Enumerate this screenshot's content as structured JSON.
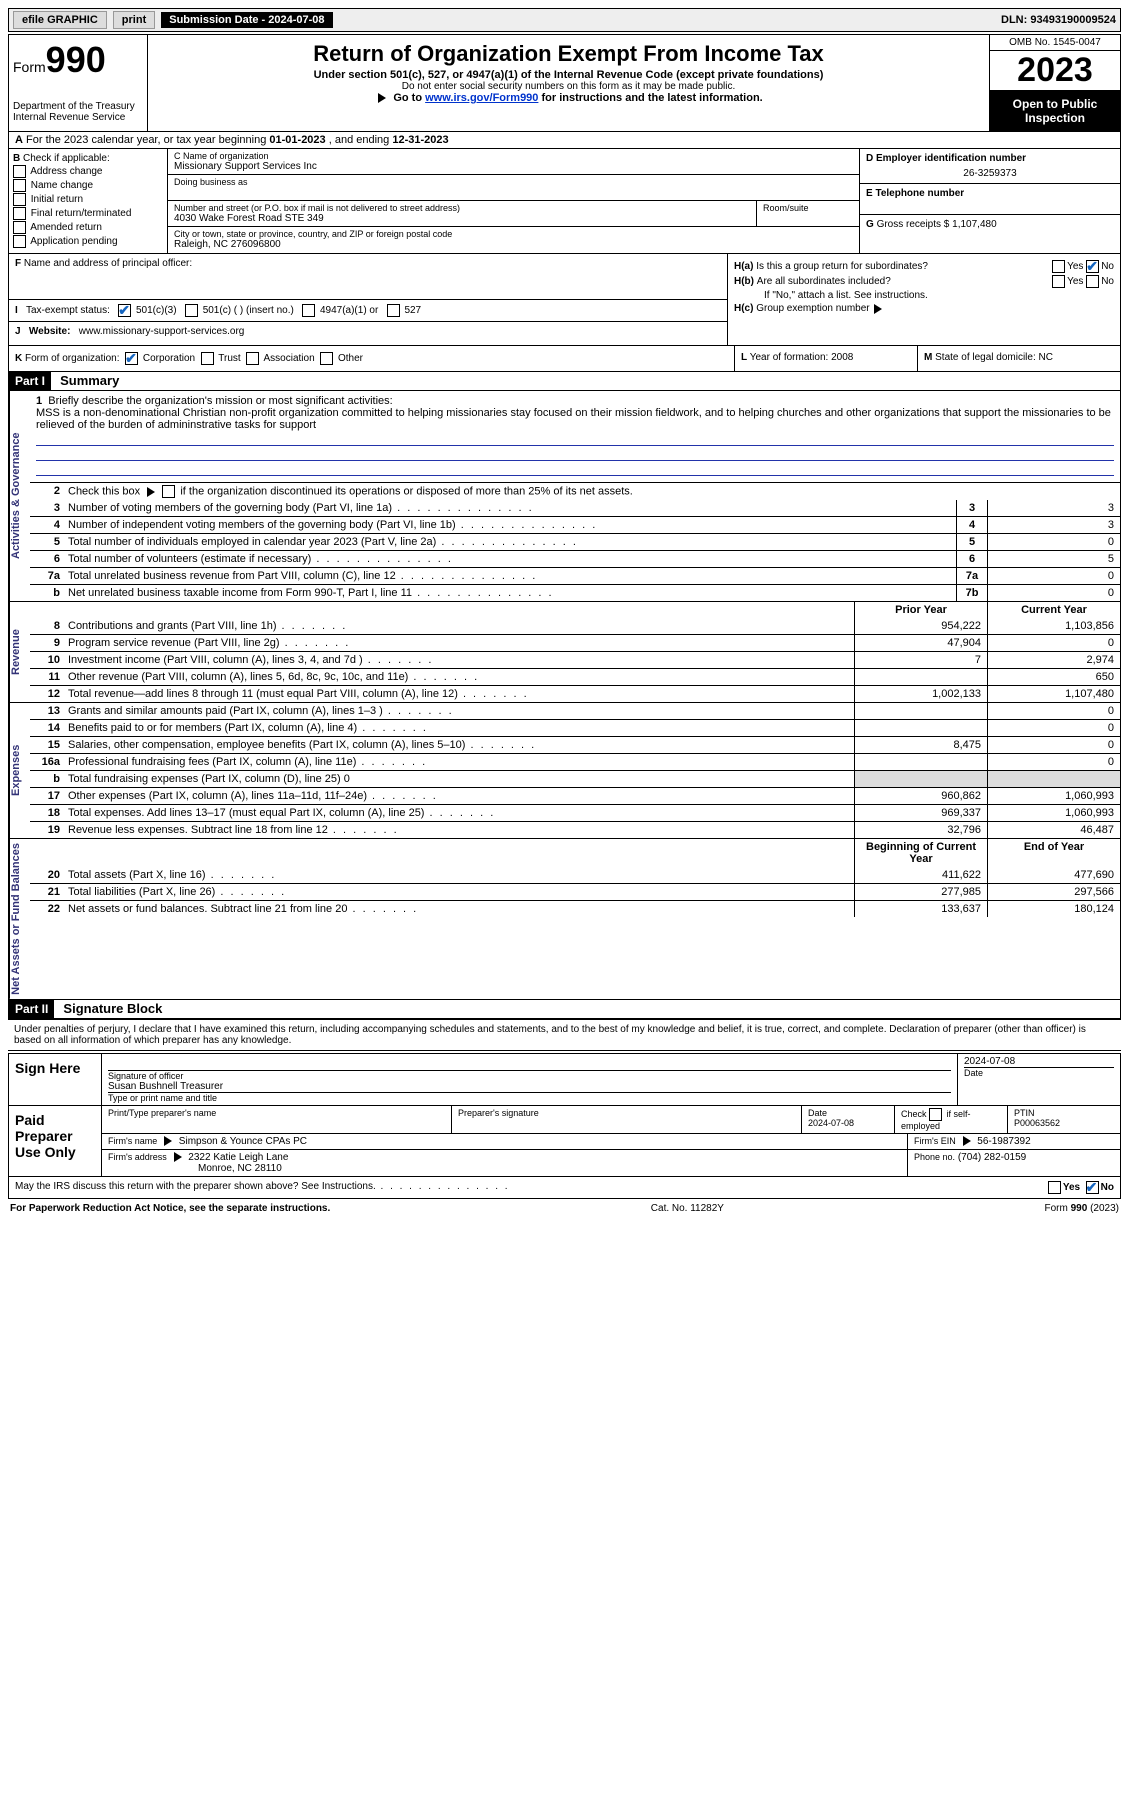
{
  "topbar": {
    "efile": "efile GRAPHIC",
    "print": "print",
    "submission": "Submission Date - 2024-07-08",
    "dln": "DLN: 93493190009524"
  },
  "header": {
    "form_label": "Form",
    "form_number": "990",
    "dept": "Department of the Treasury",
    "irs": "Internal Revenue Service",
    "title": "Return of Organization Exempt From Income Tax",
    "sub1": "Under section 501(c), 527, or 4947(a)(1) of the Internal Revenue Code (except private foundations)",
    "sub2": "Do not enter social security numbers on this form as it may be made public.",
    "sub3_pre": "Go to ",
    "sub3_link": "www.irs.gov/Form990",
    "sub3_post": " for instructions and the latest information.",
    "omb": "OMB No. 1545-0047",
    "year": "2023",
    "inspect": "Open to Public Inspection"
  },
  "row_a": {
    "label": "A",
    "text_pre": "For the 2023 calendar year, or tax year beginning ",
    "begin": "01-01-2023",
    "mid": " , and ending ",
    "end": "12-31-2023"
  },
  "col_b": {
    "label": "B",
    "intro": "Check if applicable:",
    "items": [
      "Address change",
      "Name change",
      "Initial return",
      "Final return/terminated",
      "Amended return",
      "Application pending"
    ]
  },
  "col_c": {
    "name_label": "C Name of organization",
    "name": "Missionary Support Services Inc",
    "dba_label": "Doing business as",
    "addr_label": "Number and street (or P.O. box if mail is not delivered to street address)",
    "addr": "4030 Wake Forest Road STE 349",
    "suite_label": "Room/suite",
    "city_label": "City or town, state or province, country, and ZIP or foreign postal code",
    "city": "Raleigh, NC  276096800"
  },
  "col_d": {
    "d_label": "D Employer identification number",
    "ein": "26-3259373",
    "e_label": "E Telephone number",
    "g_label": "G",
    "g_text": "Gross receipts $",
    "g_val": "1,107,480"
  },
  "col_f": {
    "label": "F",
    "text": "Name and address of principal officer:"
  },
  "col_h": {
    "ha_label": "H(a)",
    "ha_text": "Is this a group return for subordinates?",
    "hb_label": "H(b)",
    "hb_text": "Are all subordinates included?",
    "hb_note": "If \"No,\" attach a list. See instructions.",
    "hc_label": "H(c)",
    "hc_text": "Group exemption number",
    "yes": "Yes",
    "no": "No"
  },
  "row_i": {
    "label": "I",
    "text": "Tax-exempt status:",
    "opts": [
      "501(c)(3)",
      "501(c) (  ) (insert no.)",
      "4947(a)(1) or",
      "527"
    ]
  },
  "row_j": {
    "label": "J",
    "text": "Website:",
    "url": "www.missionary-support-services.org"
  },
  "row_k": {
    "label": "K",
    "text": "Form of organization:",
    "opts": [
      "Corporation",
      "Trust",
      "Association",
      "Other"
    ],
    "l_label": "L",
    "l_text": "Year of formation:",
    "l_val": "2008",
    "m_label": "M",
    "m_text": "State of legal domicile:",
    "m_val": "NC"
  },
  "part1": {
    "hdr": "Part I",
    "title": "Summary",
    "line1_label": "1",
    "line1_intro": "Briefly describe the organization's mission or most significant activities:",
    "line1_text": "MSS is a non-denominational Christian non-profit organization committed to helping missionaries stay focused on their mission fieldwork, and to helping churches and other organizations that support the missionaries to be relieved of the burden of admininstrative tasks for support",
    "line2_label": "2",
    "line2_text": "Check this box",
    "line2_post": "if the organization discontinued its operations or disposed of more than 25% of its net assets.",
    "side_gov": "Activities & Governance",
    "side_rev": "Revenue",
    "side_exp": "Expenses",
    "side_net": "Net Assets or Fund Balances",
    "col_prior": "Prior Year",
    "col_current": "Current Year",
    "col_begin": "Beginning of Current Year",
    "col_end": "End of Year",
    "rows_gov": [
      {
        "n": "3",
        "d": "Number of voting members of the governing body (Part VI, line 1a)",
        "box": "3",
        "v": "3"
      },
      {
        "n": "4",
        "d": "Number of independent voting members of the governing body (Part VI, line 1b)",
        "box": "4",
        "v": "3"
      },
      {
        "n": "5",
        "d": "Total number of individuals employed in calendar year 2023 (Part V, line 2a)",
        "box": "5",
        "v": "0"
      },
      {
        "n": "6",
        "d": "Total number of volunteers (estimate if necessary)",
        "box": "6",
        "v": "5"
      },
      {
        "n": "7a",
        "d": "Total unrelated business revenue from Part VIII, column (C), line 12",
        "box": "7a",
        "v": "0"
      },
      {
        "n": "b",
        "d": "Net unrelated business taxable income from Form 990-T, Part I, line 11",
        "box": "7b",
        "v": "0"
      }
    ],
    "rows_rev": [
      {
        "n": "8",
        "d": "Contributions and grants (Part VIII, line 1h)",
        "p": "954,222",
        "c": "1,103,856"
      },
      {
        "n": "9",
        "d": "Program service revenue (Part VIII, line 2g)",
        "p": "47,904",
        "c": "0"
      },
      {
        "n": "10",
        "d": "Investment income (Part VIII, column (A), lines 3, 4, and 7d )",
        "p": "7",
        "c": "2,974"
      },
      {
        "n": "11",
        "d": "Other revenue (Part VIII, column (A), lines 5, 6d, 8c, 9c, 10c, and 11e)",
        "p": "",
        "c": "650"
      },
      {
        "n": "12",
        "d": "Total revenue—add lines 8 through 11 (must equal Part VIII, column (A), line 12)",
        "p": "1,002,133",
        "c": "1,107,480"
      }
    ],
    "rows_exp": [
      {
        "n": "13",
        "d": "Grants and similar amounts paid (Part IX, column (A), lines 1–3 )",
        "p": "",
        "c": "0"
      },
      {
        "n": "14",
        "d": "Benefits paid to or for members (Part IX, column (A), line 4)",
        "p": "",
        "c": "0"
      },
      {
        "n": "15",
        "d": "Salaries, other compensation, employee benefits (Part IX, column (A), lines 5–10)",
        "p": "8,475",
        "c": "0"
      },
      {
        "n": "16a",
        "d": "Professional fundraising fees (Part IX, column (A), line 11e)",
        "p": "",
        "c": "0"
      },
      {
        "n": "b",
        "d": "Total fundraising expenses (Part IX, column (D), line 25) 0",
        "p": null,
        "c": null
      },
      {
        "n": "17",
        "d": "Other expenses (Part IX, column (A), lines 11a–11d, 11f–24e)",
        "p": "960,862",
        "c": "1,060,993"
      },
      {
        "n": "18",
        "d": "Total expenses. Add lines 13–17 (must equal Part IX, column (A), line 25)",
        "p": "969,337",
        "c": "1,060,993"
      },
      {
        "n": "19",
        "d": "Revenue less expenses. Subtract line 18 from line 12",
        "p": "32,796",
        "c": "46,487"
      }
    ],
    "rows_net": [
      {
        "n": "20",
        "d": "Total assets (Part X, line 16)",
        "p": "411,622",
        "c": "477,690"
      },
      {
        "n": "21",
        "d": "Total liabilities (Part X, line 26)",
        "p": "277,985",
        "c": "297,566"
      },
      {
        "n": "22",
        "d": "Net assets or fund balances. Subtract line 21 from line 20",
        "p": "133,637",
        "c": "180,124"
      }
    ]
  },
  "part2": {
    "hdr": "Part II",
    "title": "Signature Block",
    "declaration": "Under penalties of perjury, I declare that I have examined this return, including accompanying schedules and statements, and to the best of my knowledge and belief, it is true, correct, and complete. Declaration of preparer (other than officer) is based on all information of which preparer has any knowledge.",
    "sign_here": "Sign Here",
    "sig_officer": "Signature of officer",
    "officer_name": "Susan Bushnell Treasurer",
    "type_name": "Type or print name and title",
    "date_label": "Date",
    "date_val": "2024-07-08",
    "paid": "Paid Preparer Use Only",
    "prep_name_label": "Print/Type preparer's name",
    "prep_sig_label": "Preparer's signature",
    "prep_date": "2024-07-08",
    "check_label": "Check",
    "self_emp": "if self-employed",
    "ptin_label": "PTIN",
    "ptin": "P00063562",
    "firm_name_label": "Firm's name",
    "firm_name": "Simpson & Younce CPAs PC",
    "firm_ein_label": "Firm's EIN",
    "firm_ein": "56-1987392",
    "firm_addr_label": "Firm's address",
    "firm_addr1": "2322 Katie Leigh Lane",
    "firm_addr2": "Monroe, NC  28110",
    "phone_label": "Phone no.",
    "phone": "(704) 282-0159",
    "discuss": "May the IRS discuss this return with the preparer shown above? See Instructions."
  },
  "footer": {
    "left": "For Paperwork Reduction Act Notice, see the separate instructions.",
    "mid": "Cat. No. 11282Y",
    "right": "Form 990 (2023)"
  }
}
